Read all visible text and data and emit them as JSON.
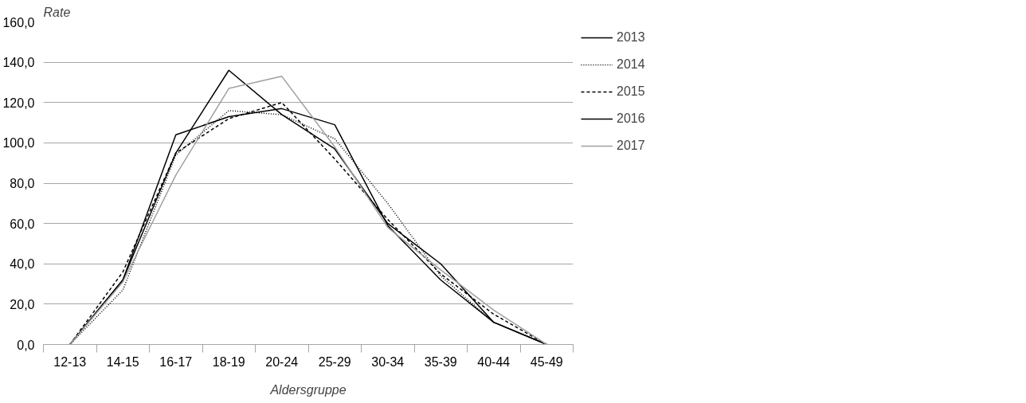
{
  "chart_data": {
    "type": "line",
    "xlabel": "Aldersgruppe",
    "ylabel": "Rate",
    "categories": [
      "12-13",
      "14-15",
      "16-17",
      "18-19",
      "20-24",
      "25-29",
      "30-34",
      "35-39",
      "40-44",
      "45-49"
    ],
    "series": [
      {
        "name": "2013",
        "color": "#000000",
        "line_style": "solid",
        "values": [
          0,
          32,
          104,
          113,
          117,
          109,
          59,
          32,
          11,
          0
        ]
      },
      {
        "name": "2014",
        "color": "#000000",
        "line_style": "dotted",
        "values": [
          0,
          27,
          94,
          116,
          114,
          102,
          70,
          34,
          11,
          0
        ]
      },
      {
        "name": "2015",
        "color": "#000000",
        "line_style": "dashed",
        "values": [
          0,
          36,
          95,
          112,
          120,
          92,
          62,
          35,
          15,
          0
        ]
      },
      {
        "name": "2016",
        "color": "#000000",
        "line_style": "solid",
        "values": [
          0,
          32,
          95,
          136,
          114,
          97,
          60,
          40,
          11,
          0
        ]
      },
      {
        "name": "2017",
        "color": "#a0a0a0",
        "line_style": "solid",
        "values": [
          0,
          31,
          84,
          127,
          133,
          98,
          58,
          37,
          17,
          0
        ]
      }
    ],
    "ylim": [
      0,
      160
    ],
    "yticks": [
      {
        "value": 0,
        "label": "0,0"
      },
      {
        "value": 20,
        "label": "20,0"
      },
      {
        "value": 40,
        "label": "40,0"
      },
      {
        "value": 60,
        "label": "60,0"
      },
      {
        "value": 80,
        "label": "80,0"
      },
      {
        "value": 100,
        "label": "100,0"
      },
      {
        "value": 120,
        "label": "120,0"
      },
      {
        "value": 140,
        "label": "140,0"
      },
      {
        "value": 160,
        "label": "160,0"
      }
    ],
    "grid": "y",
    "legend": "right",
    "marker": "none"
  }
}
